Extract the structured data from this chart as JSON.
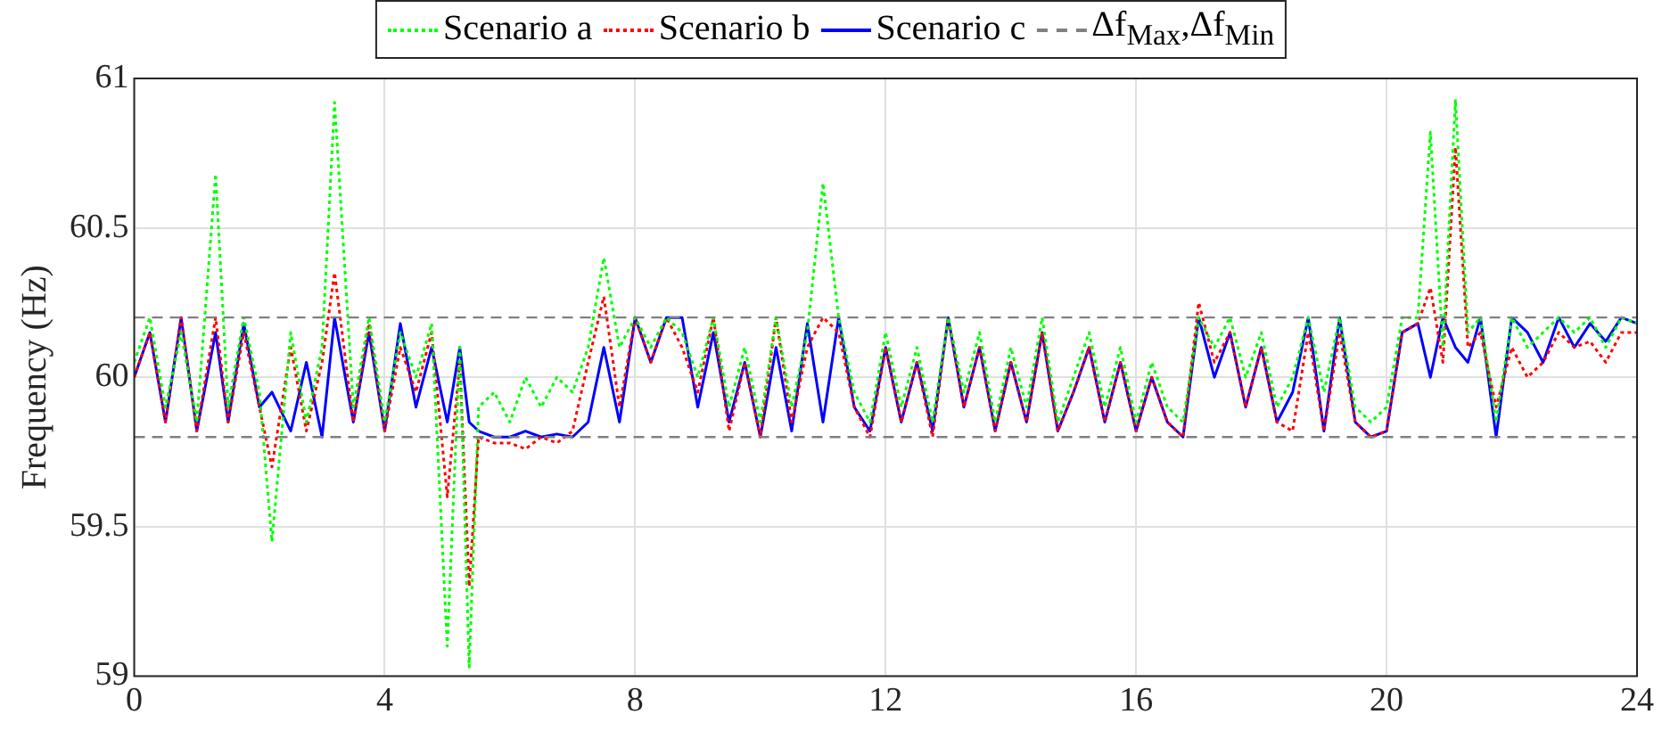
{
  "chart_data": {
    "type": "line",
    "ylabel": "Frequency (Hz)",
    "xlim": [
      0,
      24
    ],
    "xticks": [
      0,
      4,
      8,
      12,
      16,
      20,
      24
    ],
    "ylim": [
      59,
      61
    ],
    "yticks": [
      59,
      59.5,
      60,
      60.5,
      61
    ],
    "grid": true,
    "legend": "top",
    "x": [
      0,
      0.25,
      0.5,
      0.75,
      1.0,
      1.3,
      1.5,
      1.75,
      2.0,
      2.2,
      2.5,
      2.75,
      3.0,
      3.2,
      3.5,
      3.75,
      4.0,
      4.25,
      4.5,
      4.75,
      5.0,
      5.2,
      5.35,
      5.5,
      5.75,
      6.0,
      6.25,
      6.5,
      6.75,
      7.0,
      7.25,
      7.5,
      7.75,
      8.0,
      8.25,
      8.5,
      8.75,
      9.0,
      9.25,
      9.5,
      9.75,
      10.0,
      10.25,
      10.5,
      10.75,
      11.0,
      11.25,
      11.5,
      11.75,
      12.0,
      12.25,
      12.5,
      12.75,
      13.0,
      13.25,
      13.5,
      13.75,
      14.0,
      14.25,
      14.5,
      14.75,
      15.0,
      15.25,
      15.5,
      15.75,
      16.0,
      16.25,
      16.5,
      16.75,
      17.0,
      17.25,
      17.5,
      17.75,
      18.0,
      18.25,
      18.5,
      18.75,
      19.0,
      19.25,
      19.5,
      19.75,
      20.0,
      20.25,
      20.5,
      20.7,
      20.9,
      21.1,
      21.3,
      21.5,
      21.75,
      22.0,
      22.25,
      22.5,
      22.75,
      23.0,
      23.25,
      23.5,
      23.75,
      24.0
    ],
    "series": [
      {
        "name": "Scenario a",
        "color": "#00ff00",
        "line_style": "dotted",
        "values": [
          60.05,
          60.2,
          59.9,
          60.15,
          59.85,
          60.68,
          59.9,
          60.2,
          59.95,
          59.45,
          60.15,
          59.85,
          60.1,
          60.92,
          59.9,
          60.2,
          59.85,
          60.15,
          60.0,
          60.18,
          59.1,
          60.1,
          59.03,
          59.9,
          59.95,
          59.85,
          60.0,
          59.9,
          60.0,
          59.95,
          60.1,
          60.4,
          60.1,
          60.2,
          60.1,
          60.2,
          60.15,
          60.0,
          60.2,
          59.9,
          60.1,
          59.85,
          60.2,
          59.9,
          60.15,
          60.65,
          60.2,
          59.95,
          59.85,
          60.15,
          59.9,
          60.1,
          59.85,
          60.2,
          59.95,
          60.15,
          59.85,
          60.1,
          59.9,
          60.2,
          59.85,
          60.0,
          60.15,
          59.9,
          60.1,
          59.85,
          60.05,
          59.9,
          59.85,
          60.2,
          60.1,
          60.2,
          60.0,
          60.15,
          59.9,
          60.0,
          60.2,
          59.95,
          60.2,
          59.9,
          59.85,
          59.9,
          60.2,
          60.2,
          60.82,
          60.1,
          60.93,
          60.15,
          60.2,
          59.85,
          60.2,
          60.1,
          60.15,
          60.2,
          60.15,
          60.2,
          60.1,
          60.2,
          60.18
        ]
      },
      {
        "name": "Scenario b",
        "color": "#ff0000",
        "line_style": "dotted",
        "values": [
          60.0,
          60.15,
          59.85,
          60.2,
          59.82,
          60.2,
          59.85,
          60.15,
          59.9,
          59.7,
          60.1,
          59.82,
          60.05,
          60.35,
          59.85,
          60.18,
          59.82,
          60.1,
          59.95,
          60.15,
          59.6,
          60.05,
          59.3,
          59.8,
          59.78,
          59.78,
          59.76,
          59.8,
          59.78,
          59.82,
          60.05,
          60.27,
          59.9,
          60.2,
          60.05,
          60.2,
          60.1,
          59.95,
          60.2,
          59.82,
          60.05,
          59.8,
          60.2,
          59.85,
          60.1,
          60.2,
          60.15,
          59.9,
          59.8,
          60.1,
          59.85,
          60.05,
          59.8,
          60.2,
          59.9,
          60.1,
          59.82,
          60.05,
          59.85,
          60.15,
          59.82,
          59.95,
          60.1,
          59.85,
          60.05,
          59.82,
          60.0,
          59.85,
          59.8,
          60.25,
          60.05,
          60.15,
          59.9,
          60.1,
          59.85,
          59.82,
          60.15,
          59.82,
          60.15,
          59.85,
          59.8,
          59.82,
          60.15,
          60.18,
          60.3,
          60.05,
          60.77,
          60.1,
          60.15,
          59.9,
          60.1,
          60.0,
          60.05,
          60.15,
          60.1,
          60.12,
          60.05,
          60.15,
          60.15
        ]
      },
      {
        "name": "Scenario c",
        "color": "#0000ff",
        "line_style": "solid",
        "values": [
          60.0,
          60.15,
          59.85,
          60.2,
          59.82,
          60.15,
          59.85,
          60.18,
          59.9,
          59.95,
          59.82,
          60.05,
          59.8,
          60.2,
          59.85,
          60.15,
          59.82,
          60.18,
          59.9,
          60.1,
          59.85,
          60.1,
          59.85,
          59.82,
          59.8,
          59.8,
          59.82,
          59.8,
          59.81,
          59.8,
          59.85,
          60.1,
          59.85,
          60.2,
          60.05,
          60.2,
          60.2,
          59.9,
          60.15,
          59.85,
          60.05,
          59.8,
          60.1,
          59.82,
          60.18,
          59.85,
          60.2,
          59.9,
          59.82,
          60.1,
          59.85,
          60.05,
          59.82,
          60.2,
          59.9,
          60.1,
          59.82,
          60.05,
          59.85,
          60.15,
          59.82,
          59.95,
          60.1,
          59.85,
          60.05,
          59.82,
          60.0,
          59.85,
          59.8,
          60.2,
          60.0,
          60.15,
          59.9,
          60.1,
          59.85,
          59.95,
          60.2,
          59.82,
          60.2,
          59.85,
          59.8,
          59.82,
          60.15,
          60.18,
          60.0,
          60.2,
          60.1,
          60.05,
          60.2,
          59.8,
          60.2,
          60.15,
          60.05,
          60.2,
          60.1,
          60.18,
          60.12,
          60.2,
          60.18
        ]
      }
    ],
    "ref_lines": [
      {
        "axis": "y",
        "value": 60.2,
        "label": "Δf$_{Max}$,Δf$_{Min}$",
        "color": "#808080",
        "line_style": "dashed"
      },
      {
        "axis": "y",
        "value": 59.8,
        "label": null,
        "color": "#808080",
        "line_style": "dashed"
      }
    ]
  }
}
